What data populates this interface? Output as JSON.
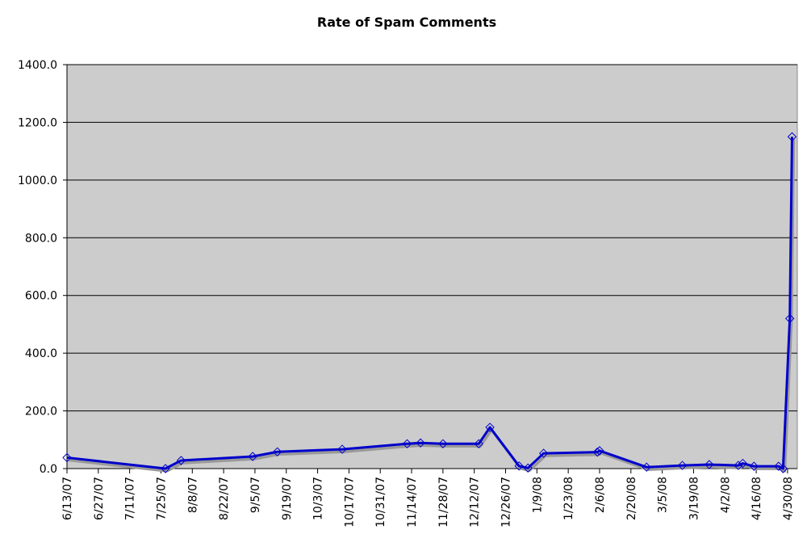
{
  "chart_data": {
    "type": "line",
    "title": "Rate of Spam Comments",
    "xlabel": "",
    "ylabel": "",
    "ylim": [
      0,
      1400
    ],
    "y_ticks": [
      "0.0",
      "200.0",
      "400.0",
      "600.0",
      "800.0",
      "1000.0",
      "1200.0",
      "1400.0"
    ],
    "y_tick_values": [
      0,
      200,
      400,
      600,
      800,
      1000,
      1200,
      1400
    ],
    "x_start": "2007-06-13",
    "x_end": "2008-05-05",
    "x_ticks": [
      "6/13/07",
      "6/27/07",
      "7/11/07",
      "7/25/07",
      "8/8/07",
      "8/22/07",
      "9/5/07",
      "9/19/07",
      "10/3/07",
      "10/17/07",
      "10/31/07",
      "11/14/07",
      "11/28/07",
      "12/12/07",
      "12/26/07",
      "1/9/08",
      "1/23/08",
      "2/6/08",
      "2/20/08",
      "3/5/08",
      "3/19/08",
      "4/2/08",
      "4/16/08",
      "4/30/08"
    ],
    "grid": true,
    "background": "#cccccc",
    "series": [
      {
        "name": "Spam comments",
        "color": "#0000cc",
        "points": [
          [
            "2007-06-13",
            38
          ],
          [
            "2007-07-27",
            0
          ],
          [
            "2007-08-03",
            28
          ],
          [
            "2007-09-04",
            42
          ],
          [
            "2007-09-15",
            58
          ],
          [
            "2007-10-14",
            67
          ],
          [
            "2007-11-12",
            86
          ],
          [
            "2007-11-18",
            89
          ],
          [
            "2007-11-28",
            86
          ],
          [
            "2007-12-14",
            86
          ],
          [
            "2007-12-19",
            143
          ],
          [
            "2008-01-01",
            9
          ],
          [
            "2008-01-05",
            2
          ],
          [
            "2008-01-12",
            53
          ],
          [
            "2008-02-05",
            57
          ],
          [
            "2008-02-06",
            62
          ],
          [
            "2008-02-27",
            5
          ],
          [
            "2008-03-14",
            11
          ],
          [
            "2008-03-26",
            14
          ],
          [
            "2008-04-08",
            11
          ],
          [
            "2008-04-10",
            18
          ],
          [
            "2008-04-15",
            8
          ],
          [
            "2008-04-26",
            8
          ],
          [
            "2008-04-28",
            0
          ],
          [
            "2008-05-01",
            520
          ],
          [
            "2008-05-02",
            1150
          ]
        ]
      }
    ]
  }
}
